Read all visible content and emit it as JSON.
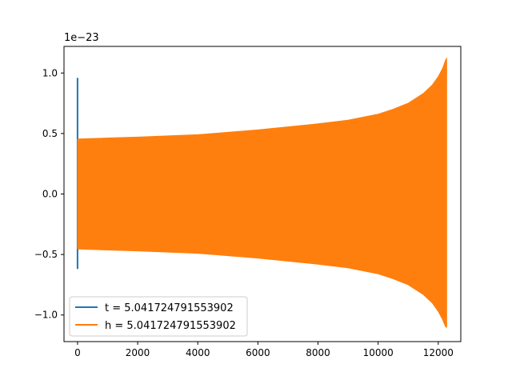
{
  "chart_data": {
    "type": "line",
    "title": "",
    "xlabel": "",
    "ylabel": "",
    "y_offset_label": "1e−23",
    "xlim": [
      -450,
      12750
    ],
    "ylim": [
      -1.22,
      1.22
    ],
    "x_ticks": [
      0,
      2000,
      4000,
      6000,
      8000,
      10000,
      12000
    ],
    "x_tick_labels": [
      "0",
      "2000",
      "4000",
      "6000",
      "8000",
      "10000",
      "12000"
    ],
    "y_ticks": [
      1.0,
      0.5,
      0.0,
      -0.5,
      -1.0
    ],
    "y_tick_labels": [
      "1.0",
      "0.5",
      "0.0",
      "−0.5",
      "−1.0"
    ],
    "grid": false,
    "legend_position": "lower-left",
    "series": [
      {
        "name": "t = 5.041724791553902",
        "color": "#1f77b4",
        "description_x": "short spike near x = 0",
        "envelope": {
          "x": [
            0,
            25,
            30
          ],
          "upper": [
            0.96,
            0.96,
            0.96
          ],
          "lower": [
            -0.62,
            -0.62,
            -0.62
          ]
        }
      },
      {
        "name": "h = 5.041724791553902",
        "color": "#ff7f0e",
        "envelope": {
          "x": [
            0,
            30,
            2000,
            4000,
            6000,
            8000,
            9000,
            10000,
            10500,
            11000,
            11500,
            11800,
            12000,
            12150,
            12250,
            12280
          ],
          "upper": [
            0.45,
            0.455,
            0.47,
            0.49,
            0.53,
            0.58,
            0.61,
            0.66,
            0.7,
            0.75,
            0.83,
            0.9,
            0.97,
            1.04,
            1.11,
            1.12
          ],
          "lower": [
            -0.45,
            -0.455,
            -0.47,
            -0.49,
            -0.53,
            -0.58,
            -0.61,
            -0.66,
            -0.7,
            -0.75,
            -0.83,
            -0.9,
            -0.97,
            -1.04,
            -1.1,
            -1.1
          ]
        }
      }
    ]
  }
}
